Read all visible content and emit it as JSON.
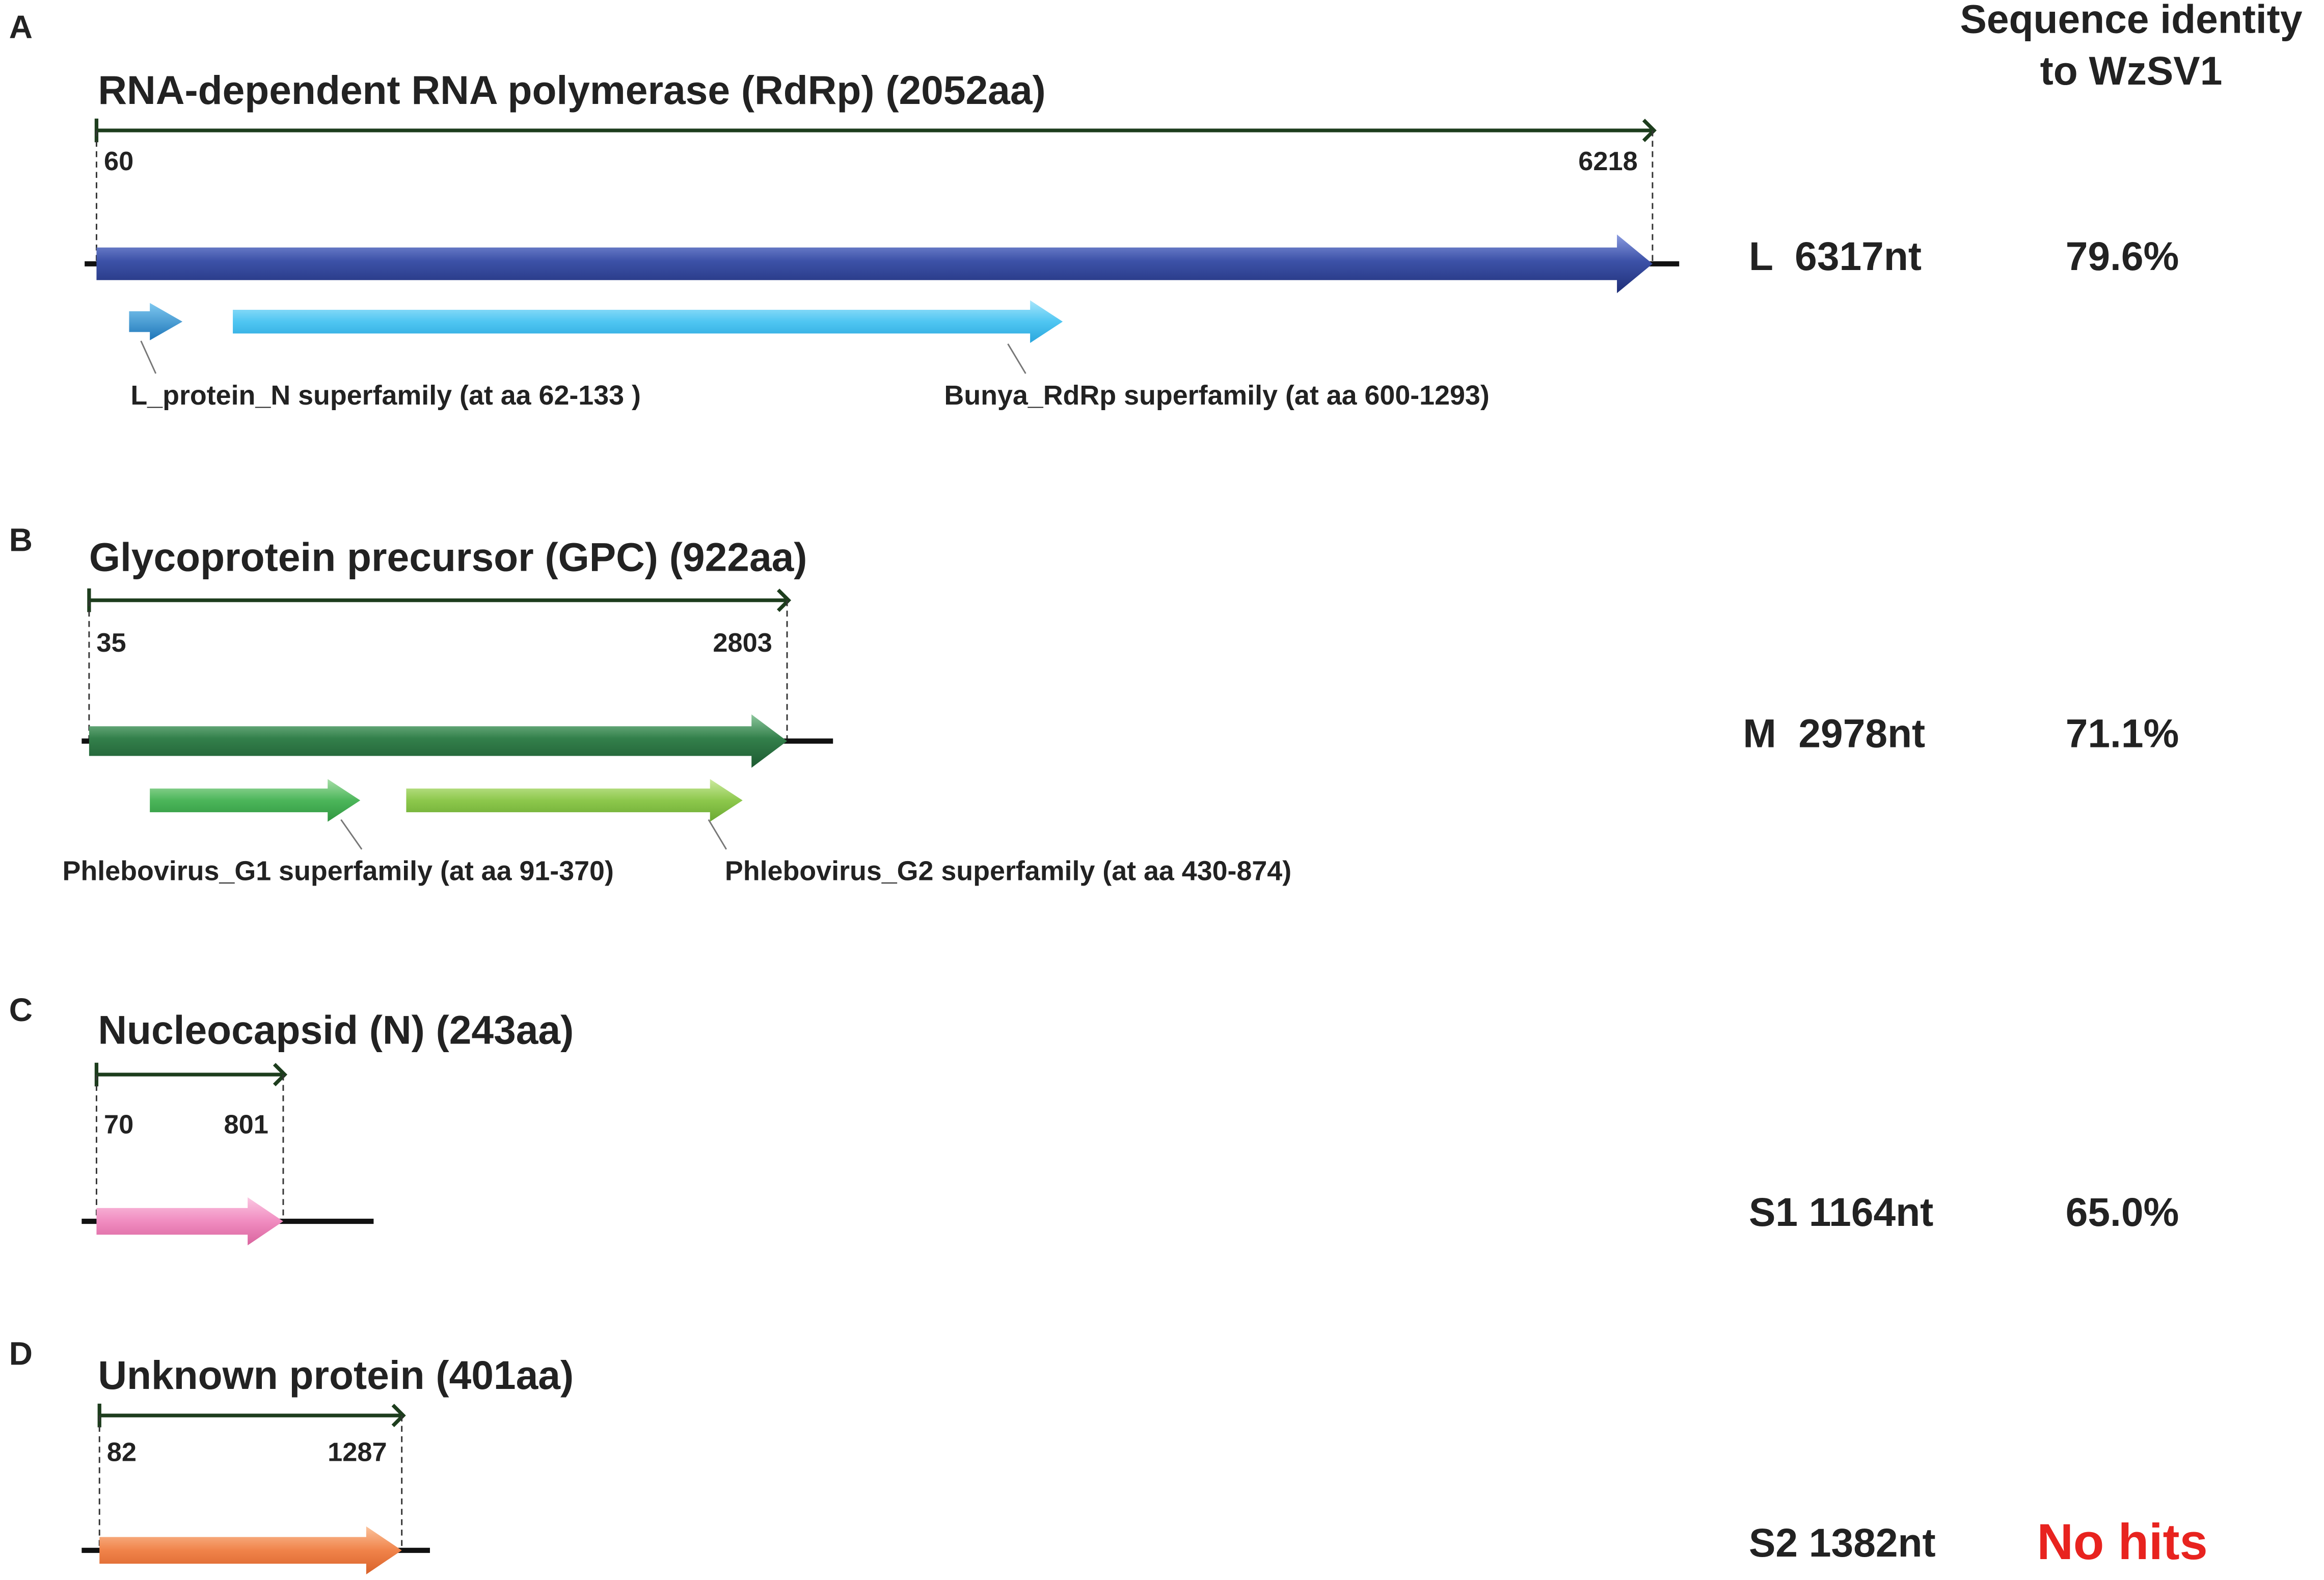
{
  "header": {
    "line1": "Sequence identity",
    "line2": "to WzSV1"
  },
  "panels": [
    {
      "letter": "A",
      "title": "RNA-dependent RNA polymerase (RdRp) (2052aa)",
      "start": "60",
      "end": "6218",
      "segment": "L  6317nt",
      "identity": "79.6%",
      "domains": [
        "L_protein_N superfamily (at aa 62-133 )",
        "Bunya_RdRp superfamily (at aa 600-1293)"
      ]
    },
    {
      "letter": "B",
      "title": "Glycoprotein precursor (GPC) (922aa)",
      "start": "35",
      "end": "2803",
      "segment": "M  2978nt",
      "identity": "71.1%",
      "domains": [
        "Phlebovirus_G1 superfamily (at aa 91-370)",
        "Phlebovirus_G2 superfamily (at aa 430-874)"
      ]
    },
    {
      "letter": "C",
      "title": "Nucleocapsid (N) (243aa)",
      "start": "70",
      "end": "801",
      "segment": "S1 1164nt",
      "identity": "65.0%",
      "domains": []
    },
    {
      "letter": "D",
      "title": "Unknown protein (401aa)",
      "start": "82",
      "end": "1287",
      "segment": "S2 1382nt",
      "identity": "No hits",
      "domains": []
    }
  ]
}
